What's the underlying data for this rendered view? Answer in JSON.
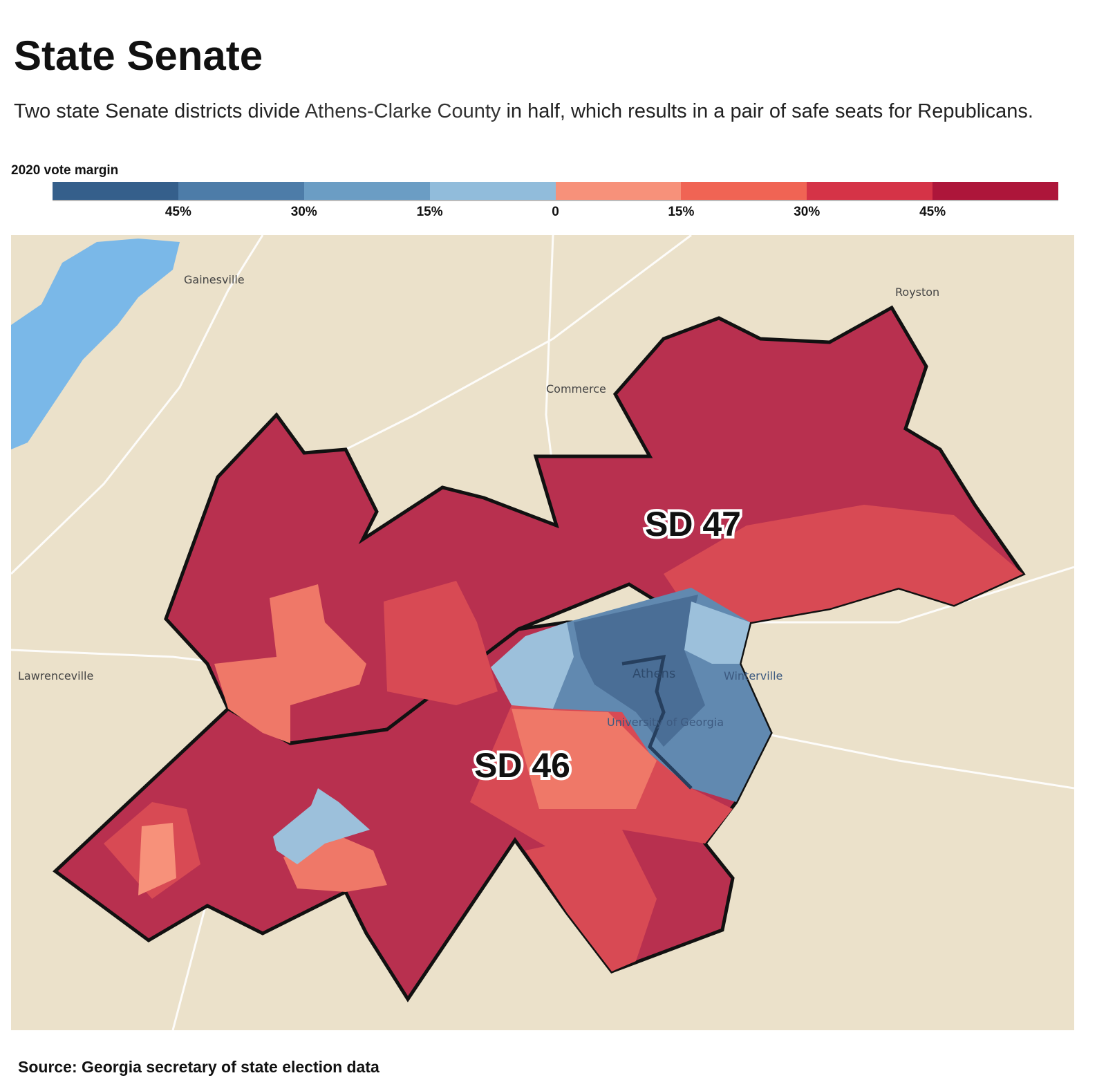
{
  "header": {
    "title": "State Senate",
    "subtitle_pre": "Two state Senate districts divide ",
    "subtitle_link": "Athens-Clarke County",
    "subtitle_post": " in half, which results in a pair of safe seats for Republicans."
  },
  "legend": {
    "title": "2020 vote margin",
    "colors": [
      "#355f8b",
      "#4d7ca8",
      "#6b9dc4",
      "#91bcdb",
      "#f7917a",
      "#f06454",
      "#d53347",
      "#ad163a"
    ],
    "ticks": [
      "45%",
      "30%",
      "15%",
      "0",
      "15%",
      "30%",
      "45%"
    ]
  },
  "map": {
    "places": [
      "Gainesville",
      "Royston",
      "Commerce",
      "Lawrenceville",
      "Athens",
      "Winterville",
      "University of Georgia"
    ],
    "districts": [
      {
        "label": "SD 47"
      },
      {
        "label": "SD 46"
      }
    ],
    "colors": {
      "land": "#ebe1ca",
      "water": "#7ab8e8",
      "road": "#ffffff",
      "rep_strong": "#b8304f",
      "rep_mid": "#d84a54",
      "rep_light": "#ef7868",
      "dem_strong": "#4a6e96",
      "dem_mid": "#6189b0",
      "dem_light": "#9cc0db"
    }
  },
  "footer": {
    "source": "Source: Georgia secretary of state election data"
  }
}
